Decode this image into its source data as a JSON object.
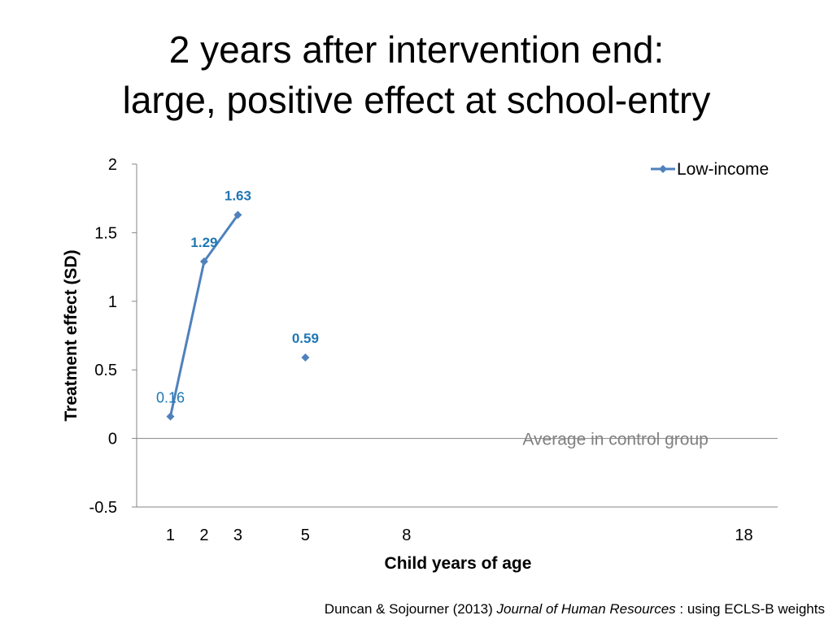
{
  "title": {
    "line1": "2 years after intervention end:",
    "line2": "large, positive effect at school-entry"
  },
  "citation": {
    "authors": "Duncan & Sojourner (2013)",
    "journal": "Journal of Human Resources",
    "suffix": ": using ECLS-B weights"
  },
  "chart_data": {
    "type": "line",
    "title": "",
    "xlabel": "Child years of age",
    "ylabel": "Treatment effect (SD)",
    "ylim": [
      -0.5,
      2
    ],
    "yticks": [
      -0.5,
      0,
      0.5,
      1,
      1.5,
      2
    ],
    "yticks_text": [
      "-0.5",
      "0",
      "0.5",
      "1",
      "1.5",
      "2"
    ],
    "xlim": [
      0,
      19
    ],
    "xticks": [
      1,
      2,
      3,
      5,
      8,
      18
    ],
    "xticks_text": [
      "1",
      "2",
      "3",
      "5",
      "8",
      "18"
    ],
    "legend_position": "top-right",
    "grid": false,
    "series": [
      {
        "name": "Low-income",
        "color": "#4F81BD",
        "points": [
          {
            "x": 1,
            "y": 0.16,
            "label": "0.16",
            "connected": true,
            "bold": false
          },
          {
            "x": 2,
            "y": 1.29,
            "label": "1.29",
            "connected": true,
            "bold": true
          },
          {
            "x": 3,
            "y": 1.63,
            "label": "1.63",
            "connected": true,
            "bold": true
          },
          {
            "x": 5,
            "y": 0.59,
            "label": "0.59",
            "connected": false,
            "bold": true
          }
        ]
      }
    ],
    "label_color": "#1F77B4",
    "annotation": {
      "text": "Average in control group",
      "x": 14,
      "y": 0,
      "color": "#808080"
    }
  }
}
